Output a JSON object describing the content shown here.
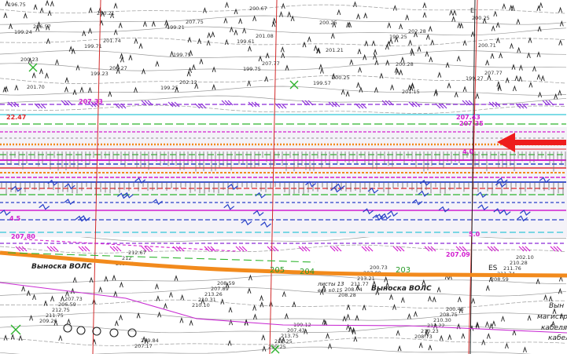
{
  "map": {
    "colors": {
      "background": "#ffffff",
      "contour": "#9a9a9a",
      "elevation_text": "#333333",
      "veg_mark": "#222222",
      "grid_line": "#d22a2a",
      "cable_orange": "#f28a1c",
      "highway_magenta": "#d21fcf",
      "highway_red": "#e0262a",
      "highway_blue": "#2740c8",
      "dash_green": "#2fb52f",
      "dash_cyan": "#30c6d8",
      "lane_purple": "#8a2ad8",
      "row_grey": "#8e8e8e",
      "arrow": "#ee1c1c",
      "thin_magenta": "#c82ad2",
      "kilometer_green": "#2a9b2a",
      "cross_green": "#2db22d"
    },
    "elevations": [
      "196.75",
      "199.71",
      "199.25",
      "199.61",
      "199.57",
      "199.25",
      "199.27",
      "199.24",
      "199.23",
      "199.21",
      "199.75",
      "200.25",
      "200.28",
      "200.25",
      "200.23",
      "200.21",
      "199.75",
      "200.67",
      "201.21",
      "201.15",
      "200.71",
      "201.70",
      "201.74",
      "202.12",
      "201.08",
      "200.25",
      "202.28",
      "207.77",
      "206.57",
      "206.27",
      "207.75",
      "207.77",
      "208.28",
      "208.73",
      "208.59",
      "209.26",
      "209.75",
      "210.10",
      "209.25",
      "208.74",
      "210.23",
      "211.74",
      "211.75",
      "212",
      "210.31",
      "212.25",
      "211.77",
      "212.22",
      "211.76",
      "212.75",
      "212.67",
      "213.26",
      "213.75",
      "213.21",
      "210.30",
      "210.28",
      "206.59",
      "207.17",
      "207.89",
      "207.43",
      "207.09",
      "208.75",
      "202.10",
      "207.73",
      "209.84",
      "208.59",
      "199.12",
      "200.73",
      "200.43"
    ],
    "label_volns_1": "Выноска ВОЛС",
    "label_volns_2": "Выноска ВОЛС",
    "label_right_1": "Вын",
    "label_right_2": "магистр",
    "label_right_3": "кабеля",
    "label_right_4": "кабел",
    "label_sheet": "листы 13",
    "label_sheet_sub": "ель  ±0.15",
    "kilometers": [
      "205",
      "204",
      "203"
    ],
    "red_marks": [
      "22.47",
      "207.43",
      "207.35",
      "207.09"
    ],
    "magenta_marks": [
      "207.33",
      "207.43",
      "207.09",
      "207.80",
      "4.5",
      "5.0",
      "4.0",
      "5.0"
    ],
    "es_label": "ES",
    "letter_e": "E"
  }
}
